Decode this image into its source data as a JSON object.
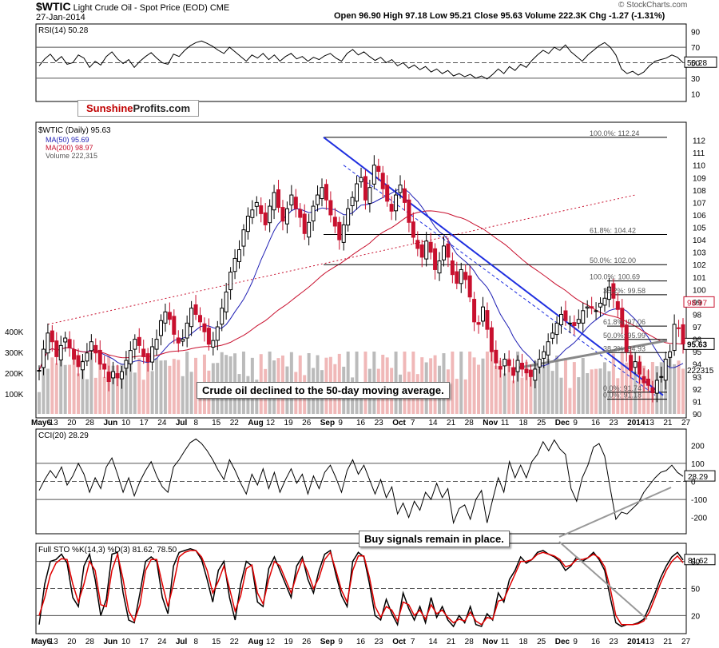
{
  "header": {
    "symbol": "$WTIC",
    "title": "Light Crude Oil - Spot Price (EOD)",
    "exchange": "CME",
    "date": "27-Jan-2014",
    "ohlc": "Open 96.90  High 97.18  Low 95.21  Close 95.63  Volume 222.3K  Chg -1.27 (-1.31%)",
    "watermark": "© StockCharts.com"
  },
  "brand": {
    "part1": "Sunshine",
    "part2": "Profits.com"
  },
  "annotations": {
    "price_note": "Crude oil declined to the 50-day moving average.",
    "sto_note": "Buy signals remain in place."
  },
  "colors": {
    "up": "#000000",
    "down": "#c8102e",
    "ma50": "#1f1fb4",
    "ma200": "#c8102e",
    "trend": "#1f2fe0",
    "fill_green": "#4a7a4a",
    "fill_red": "#8a4a44"
  },
  "chart_data": [
    {
      "type": "line",
      "panel": "rsi",
      "title": "RSI(14) 50.28",
      "y_ticks": [
        10,
        30,
        50,
        70,
        90
      ],
      "ylim": [
        0,
        100
      ],
      "levels": [
        30,
        50,
        70
      ],
      "last_label": "50.28",
      "values": [
        46,
        55,
        61,
        52,
        58,
        48,
        50,
        60,
        56,
        44,
        52,
        47,
        58,
        64,
        55,
        49,
        54,
        44,
        52,
        58,
        63,
        56,
        50,
        48,
        61,
        58,
        66,
        72,
        76,
        78,
        75,
        71,
        66,
        62,
        70,
        64,
        58,
        52,
        60,
        56,
        62,
        54,
        60,
        52,
        58,
        62,
        55,
        58,
        52,
        57,
        54,
        59,
        62,
        56,
        52,
        62,
        67,
        60,
        64,
        58,
        53,
        57,
        50,
        54,
        46,
        50,
        43,
        47,
        41,
        45,
        38,
        42,
        36,
        40,
        33,
        36,
        32,
        35,
        30,
        33,
        29,
        35,
        42,
        36,
        45,
        40,
        48,
        44,
        53,
        60,
        66,
        62,
        70,
        66,
        73,
        64,
        58,
        52,
        60,
        66,
        72,
        76,
        70,
        60,
        42,
        36,
        39,
        34,
        38,
        46,
        52,
        54,
        56,
        60,
        57,
        50
      ]
    },
    {
      "type": "line",
      "panel": "price",
      "title": "$WTIC (Daily) 95.63",
      "legend": [
        "MA(50) 95.69",
        "MA(200) 98.97",
        "Volume 222,315"
      ],
      "ylim": [
        90,
        113
      ],
      "y_ticks": [
        90,
        91,
        92,
        93,
        94,
        95,
        96,
        97,
        98,
        99,
        100,
        101,
        102,
        103,
        104,
        105,
        106,
        107,
        108,
        109,
        110,
        111,
        112
      ],
      "x_ticks": [
        "May6",
        "13",
        "20",
        "28",
        "Jun",
        "10",
        "17",
        "24",
        "Jul",
        "8",
        "15",
        "22",
        "Aug",
        "12",
        "19",
        "26",
        "Sep",
        "9",
        "16",
        "23",
        "Oct",
        "7",
        "14",
        "21",
        "28",
        "Nov",
        "11",
        "18",
        "25",
        "Dec",
        "9",
        "16",
        "23",
        "2014",
        "13",
        "21",
        "27"
      ],
      "volume_ticks": [
        "100K",
        "200K",
        "300K",
        "400K"
      ],
      "last_price_label": "95.63",
      "ma200_label": "98.97",
      "volume_label": "222315",
      "closes": [
        93.5,
        95.2,
        96.5,
        95.8,
        94.6,
        95.5,
        96.1,
        95.3,
        94.4,
        93.8,
        94.2,
        94.9,
        95.8,
        94.9,
        94.0,
        93.6,
        92.6,
        93.4,
        92.9,
        93.4,
        94.3,
        95.1,
        96.0,
        95.5,
        94.6,
        94.2,
        95.4,
        96.0,
        97.5,
        98.2,
        97.6,
        96.4,
        95.7,
        96.0,
        97.3,
        98.5,
        98.0,
        97.4,
        96.6,
        95.6,
        95.9,
        97.0,
        98.5,
        99.8,
        101.4,
        102.5,
        103.2,
        104.8,
        105.9,
        106.4,
        107.0,
        106.1,
        105.2,
        106.7,
        107.8,
        106.6,
        105.5,
        106.5,
        107.6,
        106.5,
        105.8,
        104.5,
        105.4,
        106.7,
        107.6,
        108.2,
        107.2,
        106.0,
        105.1,
        104.0,
        105.2,
        106.5,
        107.4,
        108.5,
        109.0,
        107.2,
        108.2,
        110.0,
        109.5,
        108.1,
        107.1,
        106.3,
        107.6,
        108.4,
        107.0,
        105.4,
        104.2,
        103.3,
        102.6,
        103.9,
        103.0,
        101.6,
        102.3,
        103.5,
        102.6,
        101.2,
        100.5,
        101.6,
        100.8,
        99.4,
        97.4,
        97.2,
        98.6,
        96.8,
        95.0,
        94.1,
        93.6,
        94.4,
        93.9,
        93.1,
        94.3,
        93.6,
        93.3,
        93.0,
        93.6,
        94.4,
        95.0,
        95.8,
        96.5,
        97.3,
        98.0,
        97.5,
        97.3,
        97.1,
        97.6,
        98.3,
        98.6,
        98.5,
        98.3,
        98.9,
        99.3,
        100.2,
        99.3,
        98.4,
        97.0,
        95.0,
        93.5,
        94.2,
        93.2,
        92.5,
        92.3,
        91.7,
        92.7,
        93.0,
        94.4,
        95.0,
        97.2,
        96.9,
        95.63
      ],
      "annotations": [
        {
          "text": "100.0%: 112.24",
          "y": 112.24
        },
        {
          "text": "61.8%: 104.42",
          "y": 104.42
        },
        {
          "text": "50.0%: 102.00",
          "y": 102.0
        },
        {
          "text": "100.0%: 100.69",
          "y": 100.69
        },
        {
          "text": "38.2%: 99.58",
          "y": 99.58
        },
        {
          "text": "61.8%: 97.06",
          "y": 97.06
        },
        {
          "text": "50.0%: 95.99",
          "y": 95.99
        },
        {
          "text": "38.2%: 94.93",
          "y": 94.93
        },
        {
          "text": "0.0%: 91.74",
          "y": 91.74
        },
        {
          "text": "0.0%: 91.18",
          "y": 91.18
        }
      ]
    },
    {
      "type": "line",
      "panel": "cci",
      "title": "CCI(20) 28.29",
      "y_ticks": [
        -200,
        -100,
        0,
        100,
        200
      ],
      "ylim": [
        -290,
        290
      ],
      "levels": [
        -100,
        0,
        100
      ],
      "last_label": "28.29",
      "values": [
        -50,
        10,
        60,
        20,
        80,
        -20,
        30,
        100,
        40,
        -60,
        20,
        -40,
        80,
        130,
        40,
        -60,
        20,
        -80,
        0,
        60,
        110,
        30,
        -30,
        -60,
        80,
        120,
        170,
        215,
        235,
        210,
        170,
        120,
        60,
        10,
        120,
        60,
        -10,
        -70,
        40,
        -20,
        70,
        -40,
        50,
        -60,
        10,
        70,
        -10,
        40,
        -70,
        30,
        -40,
        50,
        90,
        20,
        -60,
        60,
        120,
        40,
        90,
        10,
        -70,
        10,
        -90,
        -30,
        -180,
        -120,
        -200,
        -110,
        -160,
        -60,
        -100,
        -10,
        -90,
        -40,
        -230,
        -150,
        -130,
        -210,
        -100,
        -50,
        -230,
        -100,
        20,
        -60,
        110,
        20,
        90,
        20,
        110,
        150,
        220,
        170,
        230,
        180,
        150,
        -40,
        -110,
        20,
        90,
        190,
        210,
        140,
        -40,
        -210,
        -170,
        -180,
        -150,
        -120,
        -60,
        -20,
        20,
        50,
        60,
        90,
        50,
        28
      ]
    },
    {
      "type": "line",
      "panel": "sto",
      "title": "Full STO %K(14,3) %D(3) 81.62, 78.50",
      "y_ticks": [
        20,
        50,
        80
      ],
      "ylim": [
        0,
        100
      ],
      "levels": [
        20,
        50,
        80
      ],
      "last_label": "81.62",
      "series": [
        {
          "name": "%K",
          "color": "#000000",
          "values": [
            10,
            55,
            80,
            82,
            88,
            78,
            40,
            30,
            75,
            88,
            60,
            20,
            38,
            88,
            90,
            45,
            15,
            12,
            45,
            80,
            85,
            80,
            40,
            22,
            75,
            90,
            92,
            94,
            92,
            82,
            60,
            35,
            70,
            80,
            40,
            15,
            55,
            80,
            75,
            35,
            30,
            72,
            85,
            70,
            55,
            40,
            75,
            85,
            60,
            45,
            70,
            88,
            92,
            65,
            42,
            30,
            80,
            90,
            85,
            55,
            20,
            15,
            38,
            22,
            10,
            45,
            28,
            15,
            30,
            12,
            40,
            18,
            30,
            15,
            8,
            20,
            12,
            30,
            10,
            8,
            22,
            15,
            45,
            35,
            60,
            70,
            85,
            78,
            82,
            90,
            92,
            88,
            85,
            80,
            70,
            75,
            85,
            80,
            84,
            90,
            82,
            70,
            40,
            12,
            8,
            10,
            10,
            12,
            16,
            30,
            45,
            62,
            75,
            85,
            90,
            81.62
          ]
        },
        {
          "name": "%D",
          "color": "#e00000",
          "values": [
            20,
            40,
            65,
            78,
            83,
            82,
            55,
            35,
            55,
            80,
            70,
            32,
            30,
            70,
            88,
            60,
            25,
            14,
            32,
            70,
            82,
            82,
            55,
            30,
            55,
            85,
            90,
            92,
            92,
            85,
            70,
            45,
            58,
            75,
            50,
            25,
            42,
            72,
            76,
            45,
            33,
            60,
            80,
            75,
            60,
            45,
            65,
            82,
            68,
            50,
            62,
            82,
            90,
            70,
            48,
            35,
            70,
            86,
            86,
            62,
            30,
            18,
            30,
            26,
            14,
            35,
            32,
            20,
            26,
            16,
            32,
            22,
            26,
            18,
            12,
            16,
            14,
            24,
            14,
            10,
            18,
            16,
            36,
            38,
            52,
            66,
            80,
            80,
            82,
            88,
            90,
            88,
            86,
            82,
            74,
            76,
            82,
            82,
            84,
            88,
            84,
            74,
            50,
            20,
            10,
            10,
            10,
            11,
            14,
            24,
            40,
            56,
            70,
            80,
            86,
            78.5
          ]
        }
      ]
    }
  ]
}
